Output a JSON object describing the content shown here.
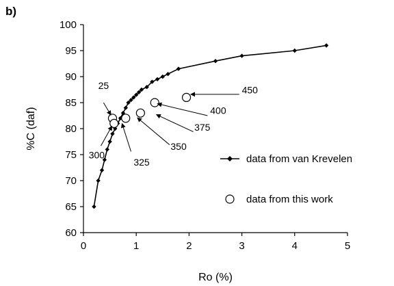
{
  "chart_data": {
    "type": "scatter",
    "panel_label": "b)",
    "xlabel": "Ro (%)",
    "ylabel": "%C (daf)",
    "xlim": [
      0,
      5
    ],
    "ylim": [
      60,
      100
    ],
    "x_ticks": [
      "0",
      "1",
      "2",
      "3",
      "4",
      "5"
    ],
    "y_ticks": [
      "60",
      "65",
      "70",
      "75",
      "80",
      "85",
      "90",
      "95",
      "100"
    ],
    "grid": false,
    "legend_placement": "center-right",
    "series": [
      {
        "name": "data from van Krevelen",
        "style": "line-diamond",
        "color": "#000000",
        "points": [
          {
            "x": 0.2,
            "y": 65
          },
          {
            "x": 0.28,
            "y": 70
          },
          {
            "x": 0.35,
            "y": 72
          },
          {
            "x": 0.4,
            "y": 74
          },
          {
            "x": 0.45,
            "y": 76
          },
          {
            "x": 0.5,
            "y": 77.5
          },
          {
            "x": 0.55,
            "y": 79
          },
          {
            "x": 0.6,
            "y": 80
          },
          {
            "x": 0.65,
            "y": 81
          },
          {
            "x": 0.7,
            "y": 82
          },
          {
            "x": 0.75,
            "y": 83
          },
          {
            "x": 0.8,
            "y": 84
          },
          {
            "x": 0.85,
            "y": 85
          },
          {
            "x": 0.9,
            "y": 85.5
          },
          {
            "x": 0.95,
            "y": 86
          },
          {
            "x": 1.0,
            "y": 86.5
          },
          {
            "x": 1.05,
            "y": 87
          },
          {
            "x": 1.1,
            "y": 87.5
          },
          {
            "x": 1.2,
            "y": 88
          },
          {
            "x": 1.3,
            "y": 89
          },
          {
            "x": 1.4,
            "y": 89.5
          },
          {
            "x": 1.5,
            "y": 90
          },
          {
            "x": 1.6,
            "y": 90.5
          },
          {
            "x": 1.8,
            "y": 91.5
          },
          {
            "x": 2.5,
            "y": 93
          },
          {
            "x": 3.0,
            "y": 94
          },
          {
            "x": 4.0,
            "y": 95
          },
          {
            "x": 4.6,
            "y": 96
          }
        ]
      },
      {
        "name": "data from this work",
        "style": "open-circle",
        "color": "#000000",
        "points": [
          {
            "x": 0.55,
            "y": 82,
            "label": "25"
          },
          {
            "x": 0.58,
            "y": 81,
            "label": "300"
          },
          {
            "x": 0.8,
            "y": 82,
            "label": "325"
          },
          {
            "x": 1.08,
            "y": 83,
            "label": "350"
          },
          {
            "x": 1.35,
            "y": 85,
            "label": "375"
          },
          {
            "x": 1.95,
            "y": 86,
            "label": "400"
          }
        ]
      }
    ],
    "annotations": [
      {
        "text": "25",
        "x": 0.28,
        "y": 87.6
      },
      {
        "text": "300",
        "x": 0.1,
        "y": 74.3
      },
      {
        "text": "325",
        "x": 0.95,
        "y": 72.9
      },
      {
        "text": "350",
        "x": 1.65,
        "y": 75.9
      },
      {
        "text": "375",
        "x": 2.1,
        "y": 79.6
      },
      {
        "text": "400",
        "x": 2.4,
        "y": 82.8
      },
      {
        "text": "450",
        "x": 3.0,
        "y": 86.8
      }
    ],
    "arrows": [
      {
        "from": [
          0.38,
          85.0
        ],
        "to": [
          0.52,
          82.6
        ]
      },
      {
        "from": [
          0.33,
          76.7
        ],
        "to": [
          0.54,
          80.5
        ]
      },
      {
        "from": [
          0.9,
          75.6
        ],
        "to": [
          0.73,
          81.0
        ]
      },
      {
        "from": [
          1.63,
          76.9
        ],
        "to": [
          1.02,
          82.1
        ]
      },
      {
        "from": [
          2.08,
          79.4
        ],
        "to": [
          1.38,
          82.7
        ]
      },
      {
        "from": [
          2.35,
          82.5
        ],
        "to": [
          1.4,
          84.8
        ]
      },
      {
        "from": [
          2.95,
          86.6
        ],
        "to": [
          2.03,
          86.6
        ]
      }
    ]
  }
}
